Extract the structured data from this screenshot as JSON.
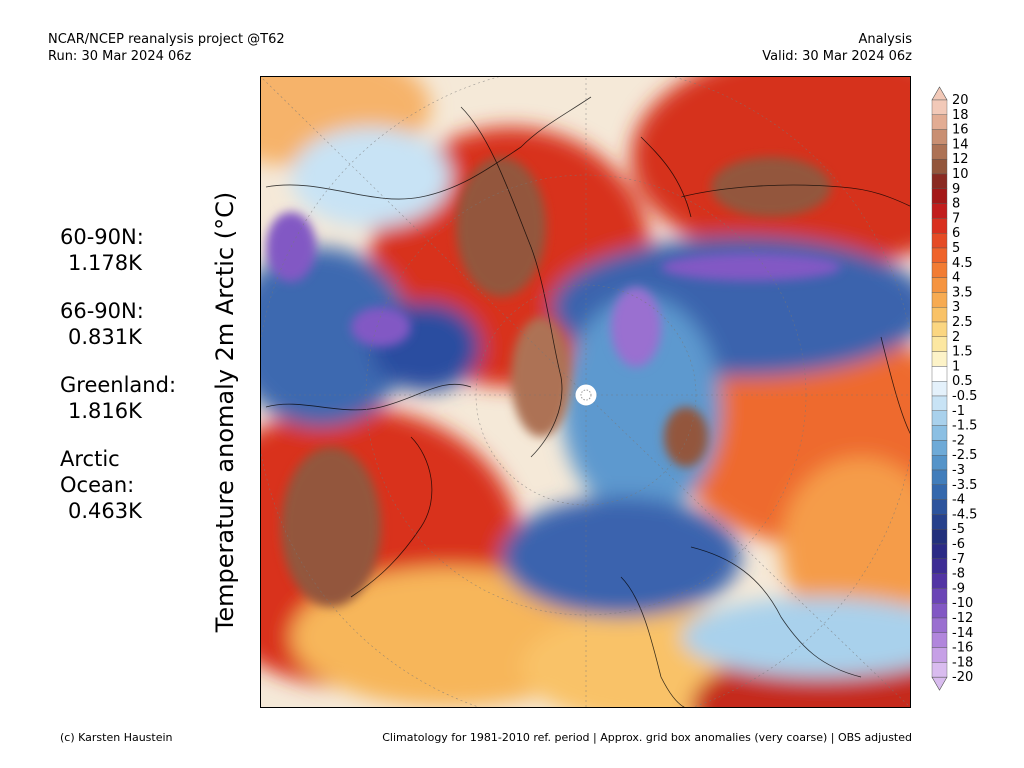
{
  "header": {
    "source": "NCAR/NCEP reanalysis project @T62",
    "run": "Run: 30 Mar 2024 06z",
    "type": "Analysis",
    "valid": "Valid: 30 Mar 2024 06z"
  },
  "map": {
    "title": "Temperature anomaly 2m Arctic (°C)"
  },
  "stats": [
    {
      "label": "60-90N:",
      "value": "1.178K"
    },
    {
      "label": "66-90N:",
      "value": "0.831K"
    },
    {
      "label": "Greenland:",
      "value": "1.816K"
    },
    {
      "label": "Arctic Ocean:",
      "value": "0.463K"
    }
  ],
  "legend": {
    "labels": [
      "20",
      "18",
      "16",
      "14",
      "12",
      "10",
      "9",
      "8",
      "7",
      "6",
      "5",
      "4.5",
      "4",
      "3.5",
      "3",
      "2.5",
      "2",
      "1.5",
      "1",
      "0.5",
      "-0.5",
      "-1",
      "-1.5",
      "-2",
      "-2.5",
      "-3",
      "-3.5",
      "-4",
      "-4.5",
      "-5",
      "-6",
      "-7",
      "-8",
      "-9",
      "-10",
      "-12",
      "-14",
      "-16",
      "-18",
      "-20"
    ],
    "colors": [
      "#f2c9b8",
      "#e2ac93",
      "#c98f72",
      "#ad7255",
      "#93563c",
      "#8a2a22",
      "#a41818",
      "#c21d1d",
      "#d9301f",
      "#e54b25",
      "#ef632a",
      "#f27c33",
      "#f59440",
      "#f7ab52",
      "#f9c267",
      "#fbd681",
      "#fce7a1",
      "#fdf3c8",
      "#ffffff",
      "#e4f1fb",
      "#c8e3f5",
      "#a9d1ec",
      "#8bbfe3",
      "#6eaad7",
      "#5594c9",
      "#417dbb",
      "#3468ad",
      "#2d549d",
      "#27418c",
      "#22307c",
      "#2b2a86",
      "#3d2c94",
      "#5234a4",
      "#6b45b6",
      "#8258c4",
      "#9a6fd0",
      "#b186dc",
      "#c6a0e6",
      "#d9bcef"
    ]
  },
  "footer": {
    "credit": "(c) Karsten Haustein",
    "note": "Climatology for 1981-2010 ref. period | Approx. grid box anomalies (very coarse) | OBS adjusted"
  }
}
